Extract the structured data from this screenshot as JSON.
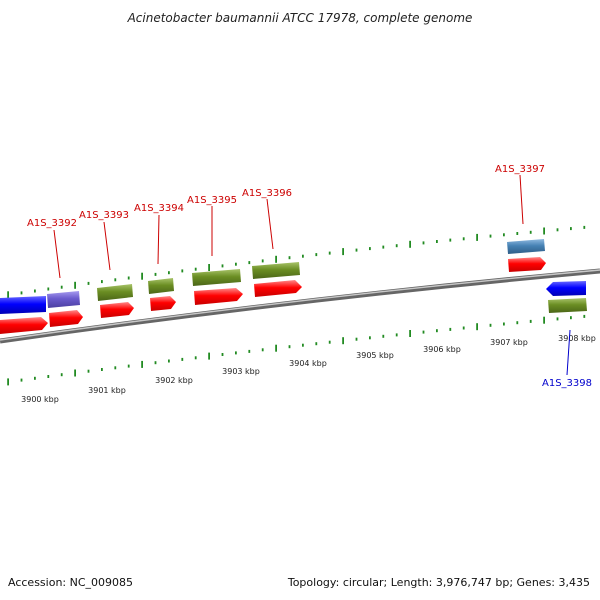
{
  "title": "Acinetobacter baumannii ATCC 17978, complete genome",
  "accession": "Accession: NC_009085",
  "topology": "Topology: circular; Length: 3,976,747 bp; Genes: 3,435",
  "colors": {
    "backbone": "#888888",
    "tick": "#228b22",
    "cds": "#ff0000",
    "gene": "#6b8e23",
    "label_forward": "#cc0000",
    "label_reverse": "#0000cc",
    "blue": "#0000ff",
    "slate": "#6a5acd",
    "steel": "#4682b4"
  },
  "scale": {
    "unit": "kbp",
    "labels": [
      "3900 kbp",
      "3901 kbp",
      "3902 kbp",
      "3903 kbp",
      "3904 kbp",
      "3905 kbp",
      "3906 kbp",
      "3907 kbp",
      "3908 kbp"
    ]
  },
  "gene_labels": [
    {
      "id": "A1S_3392",
      "strand": "forward"
    },
    {
      "id": "A1S_3393",
      "strand": "forward"
    },
    {
      "id": "A1S_3394",
      "strand": "forward"
    },
    {
      "id": "A1S_3395",
      "strand": "forward"
    },
    {
      "id": "A1S_3396",
      "strand": "forward"
    },
    {
      "id": "A1S_3397",
      "strand": "forward"
    },
    {
      "id": "A1S_3398",
      "strand": "reverse"
    }
  ]
}
